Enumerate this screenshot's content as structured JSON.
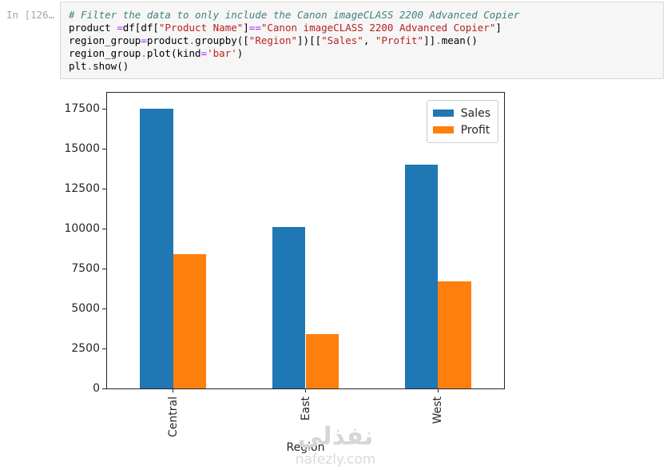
{
  "notebook": {
    "prompt": "In [126…",
    "code_lines": [
      [
        [
          "comment",
          "# Filter the data to only include the Canon imageCLASS 2200 Advanced Copier"
        ]
      ],
      [
        [
          "plain",
          "product "
        ],
        [
          "operator",
          "="
        ],
        [
          "plain",
          "df[df["
        ],
        [
          "string",
          "\"Product Name\""
        ],
        [
          "plain",
          "]"
        ],
        [
          "operator",
          "=="
        ],
        [
          "string",
          "\"Canon imageCLASS 2200 Advanced Copier\""
        ],
        [
          "plain",
          "]"
        ]
      ],
      [
        [
          "plain",
          "region_group"
        ],
        [
          "operator",
          "="
        ],
        [
          "plain",
          "product"
        ],
        [
          "operator",
          "."
        ],
        [
          "plain",
          "groupby(["
        ],
        [
          "string",
          "\"Region\""
        ],
        [
          "plain",
          "])[["
        ],
        [
          "string",
          "\"Sales\""
        ],
        [
          "plain",
          ", "
        ],
        [
          "string",
          "\"Profit\""
        ],
        [
          "plain",
          "]]"
        ],
        [
          "operator",
          "."
        ],
        [
          "plain",
          "mean()"
        ]
      ],
      [
        [
          "plain",
          "region_group"
        ],
        [
          "operator",
          "."
        ],
        [
          "plain",
          "plot(kind"
        ],
        [
          "operator",
          "="
        ],
        [
          "string",
          "'bar'"
        ],
        [
          "plain",
          ")"
        ]
      ],
      [
        [
          "plain",
          "plt"
        ],
        [
          "operator",
          "."
        ],
        [
          "plain",
          "show()"
        ]
      ]
    ]
  },
  "chart_data": {
    "type": "bar",
    "title": "",
    "categories": [
      "Central",
      "East",
      "West"
    ],
    "series": [
      {
        "name": "Sales",
        "color": "#1f77b4",
        "values": [
          17500,
          10100,
          14000
        ]
      },
      {
        "name": "Profit",
        "color": "#ff7f0e",
        "values": [
          8400,
          3400,
          6720
        ]
      }
    ],
    "xlabel": "Region",
    "ylabel": "",
    "yticks": [
      0,
      2500,
      5000,
      7500,
      10000,
      12500,
      15000,
      17500
    ],
    "ylim": [
      0,
      18500
    ],
    "legend": {
      "position": "upper right",
      "entries": [
        "Sales",
        "Profit"
      ]
    },
    "grid": false,
    "bar_width_fraction": 0.25,
    "xtick_rotation": 90
  },
  "watermark": {
    "text_arabic": "نفذلي",
    "text_domain": "nafezly.com"
  },
  "colors": {
    "sales_blue": "#1f77b4",
    "profit_orange": "#ff7f0e",
    "code_comment": "#408080",
    "code_string": "#ba2121",
    "code_operator": "#aa22ff",
    "cell_background": "#f6f6f6",
    "cell_border": "#d9d9d9",
    "prompt_gray": "#a6a6a6",
    "axis_black": "#262626"
  }
}
